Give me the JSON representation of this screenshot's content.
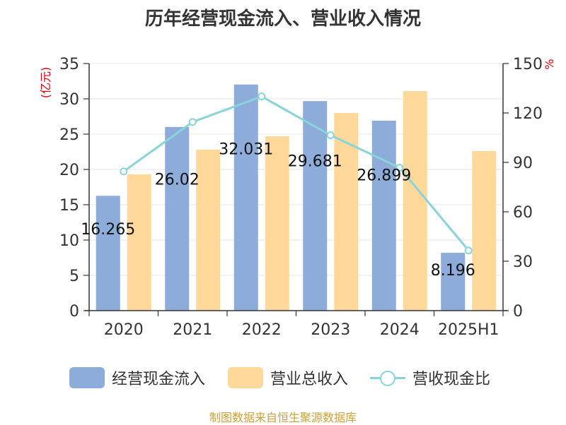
{
  "title": "历年经营现金流入、营业收入情况",
  "source": "制图数据来自恒生聚源数据库",
  "chart_data": {
    "type": "bar",
    "categories": [
      "2020",
      "2021",
      "2022",
      "2023",
      "2024",
      "2025H1"
    ],
    "ylabel_left": "(亿元)",
    "ylabel_right": "%",
    "ylim_left": [
      0,
      35
    ],
    "yticks_left": [
      0,
      5,
      10,
      15,
      20,
      25,
      30,
      35
    ],
    "ylim_right": [
      0,
      150
    ],
    "yticks_right": [
      0,
      30,
      60,
      90,
      120,
      150
    ],
    "grid": true,
    "legend_position": "bottom",
    "series": [
      {
        "name": "经营现金流入",
        "type": "bar",
        "axis": "left",
        "color": "#8eacd9",
        "values": [
          16.265,
          26.02,
          32.031,
          29.681,
          26.899,
          8.196
        ]
      },
      {
        "name": "营业总收入",
        "type": "bar",
        "axis": "left",
        "color": "#ffd89a",
        "values": [
          19.3,
          22.8,
          24.7,
          28.0,
          31.1,
          22.6
        ]
      },
      {
        "name": "营收现金比",
        "type": "line",
        "axis": "right",
        "color": "#88d4d8",
        "values": [
          84.5,
          114.5,
          130.0,
          106.5,
          86.8,
          36.5
        ]
      }
    ],
    "data_labels": [
      "16.265",
      "26.02",
      "32.031",
      "29.681",
      "26.899",
      "8.196"
    ]
  }
}
